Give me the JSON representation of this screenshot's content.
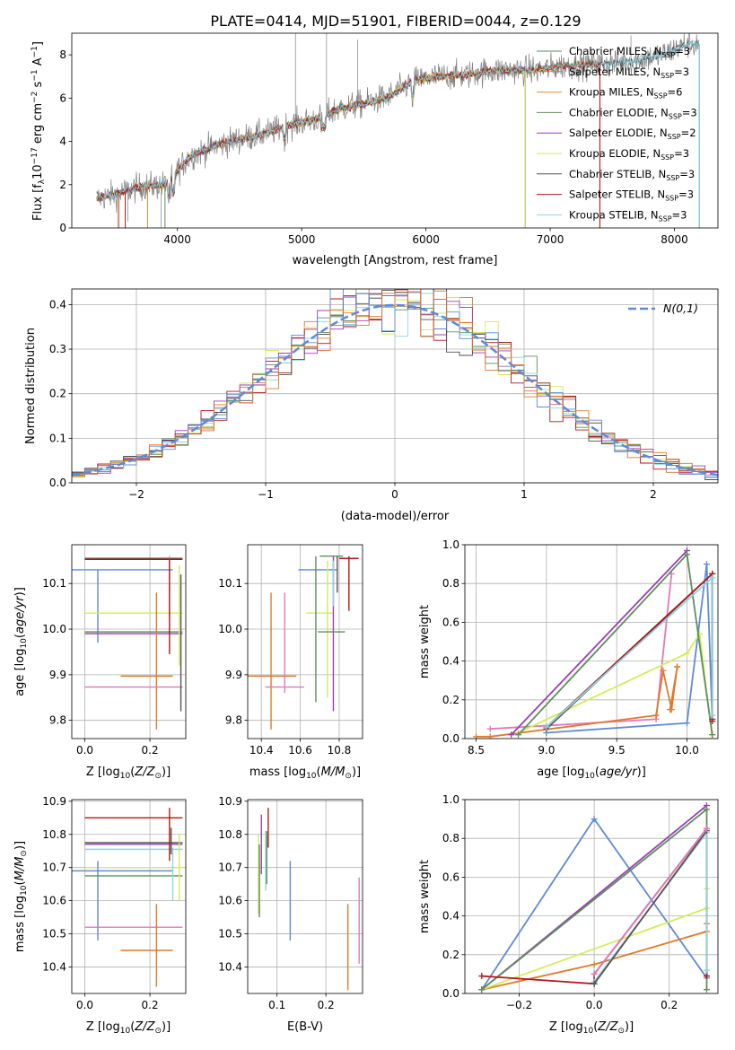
{
  "figure": {
    "title": "PLATE=0414, MJD=51901, FIBERID=0044, z=0.129"
  },
  "colors": {
    "chab_miles": "#5a8a5a",
    "salp_miles": "#e07040",
    "krou_miles": "#e08c30",
    "chab_elodie": "#5f8f5f",
    "salp_elodie": "#9b3fb5",
    "krou_elodie": "#d4e85a",
    "chab_stelib": "#505050",
    "salp_stelib": "#b01818",
    "krou_stelib": "#8ad4e0",
    "blue": "#5f8ad8",
    "pink": "#e07ab8",
    "orange": "#e07a2a",
    "yellow": "#d4ec5c",
    "purple": "#9b3fb5",
    "green": "#5f8f5f",
    "grey": "#555555",
    "red": "#b01818",
    "cyan": "#8ad4e0"
  },
  "chart_data": [
    {
      "id": "spectrum",
      "type": "line",
      "xlabel": "wavelength [Angstrom, rest frame]",
      "ylabel": "Flux [f",
      "xlim": [
        3150,
        8350
      ],
      "ylim": [
        0,
        9
      ],
      "xticks": [
        4000,
        5000,
        6000,
        7000,
        8000
      ],
      "yticks": [
        0,
        2,
        4,
        6,
        8
      ],
      "legend": "upper-right",
      "grid": false,
      "continuum": {
        "x": [
          3350,
          3500,
          3700,
          3900,
          4100,
          4300,
          4500,
          4700,
          4900,
          5100,
          5300,
          5500,
          5700,
          5900,
          6100,
          6300,
          6500,
          6700,
          6900,
          7100,
          7300,
          7500,
          7700,
          7900,
          8100
        ],
        "y": [
          1.35,
          1.55,
          1.9,
          2.0,
          3.3,
          3.8,
          4.1,
          4.35,
          4.75,
          5.0,
          5.5,
          5.75,
          6.05,
          6.8,
          7.0,
          7.05,
          7.25,
          7.3,
          7.3,
          7.5,
          7.55,
          7.6,
          7.75,
          8.0,
          8.5
        ]
      },
      "series": [
        {
          "name": "Chabrier MILES, N",
          "sub": "SSP",
          "suffix": "=3",
          "ckey": "chab_miles",
          "xmax": 7400
        },
        {
          "name": "Salpeter MILES, N",
          "sub": "SSP",
          "suffix": "=3",
          "ckey": "salp_miles",
          "xmax": 7400
        },
        {
          "name": "Kroupa MILES, N",
          "sub": "SSP",
          "suffix": "=6",
          "ckey": "krou_miles",
          "xmax": 7400
        },
        {
          "name": "Chabrier ELODIE, N",
          "sub": "SSP",
          "suffix": "=3",
          "ckey": "chab_elodie",
          "xmax": 6800
        },
        {
          "name": "Salpeter ELODIE, N",
          "sub": "SSP",
          "suffix": "=2",
          "ckey": "salp_elodie",
          "xmax": 6800
        },
        {
          "name": "Kroupa ELODIE, N",
          "sub": "SSP",
          "suffix": "=3",
          "ckey": "krou_elodie",
          "xmax": 6800
        },
        {
          "name": "Chabrier STELIB, N",
          "sub": "SSP",
          "suffix": "=3",
          "ckey": "chab_stelib",
          "xmax": 8200
        },
        {
          "name": "Salpeter STELIB, N",
          "sub": "SSP",
          "suffix": "=3",
          "ckey": "salp_stelib",
          "xmax": 7400
        },
        {
          "name": "Kroupa STELIB, N",
          "sub": "SSP",
          "suffix": "=3",
          "ckey": "krou_stelib",
          "xmax": 8200
        }
      ]
    },
    {
      "id": "residuals",
      "type": "histogram",
      "xlabel": "(data-model)/error",
      "ylabel": "Normed distribution",
      "xlim": [
        -2.5,
        2.5
      ],
      "ylim": [
        0,
        0.435
      ],
      "xticks": [
        -2,
        -1,
        0,
        1,
        2
      ],
      "yticks": [
        0.0,
        0.1,
        0.2,
        0.3,
        0.4
      ],
      "grid": true,
      "legend": "upper-right",
      "gaussian_label": "N(0,1)",
      "bin_edges_start": -2.5,
      "bin_width": 0.1
    },
    {
      "id": "age_vs_Z",
      "type": "errorbar",
      "xlabel": "Z [log10(Z/Z⊙)]",
      "ylabel": "age [log10(age/yr)]",
      "xlim": [
        -0.04,
        0.31
      ],
      "ylim": [
        9.76,
        10.185
      ],
      "xticks": [
        0.0,
        0.2
      ],
      "yticks": [
        9.8,
        9.9,
        10.0,
        10.1
      ],
      "grid": true,
      "points": [
        {
          "x": 0.15,
          "xerr": 0.15,
          "y": 10.155,
          "yerr": 0.0,
          "ckey": "green"
        },
        {
          "x": 0.15,
          "xerr": 0.15,
          "y": 10.155,
          "yerr": 0.0,
          "ckey": "grey"
        },
        {
          "x": 0.15,
          "xerr": 0.15,
          "y": 10.153,
          "yerr": 0.0,
          "ckey": "red"
        },
        {
          "x": 0.04,
          "xerr": 0.23,
          "y": 10.13,
          "yerr": 0.0,
          "ckey": "blue"
        },
        {
          "x": 0.04,
          "xerr": 0.0,
          "y": 10.05,
          "yerr": 0.08,
          "ckey": "blue"
        },
        {
          "x": 0.15,
          "xerr": 0.15,
          "y": 10.035,
          "yerr": 0.0,
          "ckey": "yellow"
        },
        {
          "x": 0.15,
          "xerr": 0.15,
          "y": 9.99,
          "yerr": 0.0,
          "ckey": "purple"
        },
        {
          "x": 0.15,
          "xerr": 0.15,
          "y": 9.994,
          "yerr": 0.0,
          "ckey": "green"
        },
        {
          "x": 0.19,
          "xerr": 0.08,
          "y": 9.897,
          "yerr": 0.0,
          "ckey": "orange"
        },
        {
          "x": 0.22,
          "xerr": 0.0,
          "y": 9.93,
          "yerr": 0.15,
          "ckey": "orange"
        },
        {
          "x": 0.15,
          "xerr": 0.15,
          "y": 9.873,
          "yerr": 0.0,
          "ckey": "pink"
        },
        {
          "x": 0.26,
          "xerr": 0.0,
          "y": 10.09,
          "yerr": 0.07,
          "ckey": "pink"
        },
        {
          "x": 0.26,
          "xerr": 0.0,
          "y": 10.05,
          "yerr": 0.105,
          "ckey": "red"
        },
        {
          "x": 0.29,
          "xerr": 0.0,
          "y": 10.03,
          "yerr": 0.11,
          "ckey": "yellow"
        },
        {
          "x": 0.295,
          "xerr": 0.0,
          "y": 9.97,
          "yerr": 0.15,
          "ckey": "grey"
        }
      ]
    },
    {
      "id": "age_vs_mass",
      "type": "errorbar",
      "xlabel": "mass [log10(M/M⊙)]",
      "ylabel": "",
      "xlim": [
        10.33,
        10.92
      ],
      "ylim": [
        9.76,
        10.185
      ],
      "xticks": [
        10.4,
        10.6,
        10.8
      ],
      "yticks": [
        9.8,
        9.9,
        10.0,
        10.1
      ],
      "grid": true,
      "points": [
        {
          "x": 10.45,
          "xerr": 0.13,
          "y": 9.897,
          "yerr": 0.0,
          "ckey": "orange"
        },
        {
          "x": 10.45,
          "xerr": 0.0,
          "y": 9.93,
          "yerr": 0.15,
          "ckey": "orange"
        },
        {
          "x": 10.52,
          "xerr": 0.1,
          "y": 9.873,
          "yerr": 0.0,
          "ckey": "pink"
        },
        {
          "x": 10.52,
          "xerr": 0.0,
          "y": 9.97,
          "yerr": 0.11,
          "ckey": "pink"
        },
        {
          "x": 10.69,
          "xerr": 0.1,
          "y": 10.13,
          "yerr": 0.0,
          "ckey": "blue"
        },
        {
          "x": 10.7,
          "xerr": 0.07,
          "y": 10.035,
          "yerr": 0.0,
          "ckey": "yellow"
        },
        {
          "x": 10.68,
          "xerr": 0.0,
          "y": 10.0,
          "yerr": 0.16,
          "ckey": "green"
        },
        {
          "x": 10.74,
          "xerr": 0.0,
          "y": 10.0,
          "yerr": 0.15,
          "ckey": "yellow"
        },
        {
          "x": 10.77,
          "xerr": 0.0,
          "y": 9.99,
          "yerr": 0.17,
          "ckey": "purple"
        },
        {
          "x": 10.76,
          "xerr": 0.06,
          "y": 10.16,
          "yerr": 0.0,
          "ckey": "green"
        },
        {
          "x": 10.76,
          "xerr": 0.07,
          "y": 9.994,
          "yerr": 0.0,
          "ckey": "green"
        },
        {
          "x": 10.77,
          "xerr": 0.0,
          "y": 10.1,
          "yerr": 0.05,
          "ckey": "cyan"
        },
        {
          "x": 10.79,
          "xerr": 0.0,
          "y": 10.12,
          "yerr": 0.04,
          "ckey": "grey"
        },
        {
          "x": 10.85,
          "xerr": 0.05,
          "y": 10.155,
          "yerr": 0.0,
          "ckey": "red"
        },
        {
          "x": 10.85,
          "xerr": 0.0,
          "y": 10.1,
          "yerr": 0.06,
          "ckey": "red"
        }
      ]
    },
    {
      "id": "mw_vs_age",
      "type": "line",
      "xlabel": "age [log10(age/yr)]",
      "ylabel": "mass weight",
      "xlim": [
        8.42,
        10.22
      ],
      "ylim": [
        0,
        1.0
      ],
      "xticks": [
        8.5,
        9.0,
        9.5,
        10.0
      ],
      "yticks": [
        0.0,
        0.2,
        0.4,
        0.6,
        0.8,
        1.0
      ],
      "grid": true,
      "series": [
        {
          "ckey": "blue",
          "x": [
            9.0,
            10.0,
            10.14,
            10.18
          ],
          "y": [
            0.03,
            0.08,
            0.9,
            0.1
          ]
        },
        {
          "ckey": "pink",
          "x": [
            8.6,
            9.78,
            9.89
          ],
          "y": [
            0.05,
            0.1,
            0.85
          ]
        },
        {
          "ckey": "orange",
          "x": [
            8.5,
            8.6,
            9.78,
            9.83,
            9.89,
            9.93,
            9.88,
            9.93
          ],
          "y": [
            0.01,
            0.01,
            0.12,
            0.35,
            0.15,
            0.37,
            0.15,
            0.37
          ]
        },
        {
          "ckey": "yellow",
          "x": [
            8.8,
            10.0,
            10.09,
            10.18
          ],
          "y": [
            0.03,
            0.44,
            0.54,
            0.0
          ]
        },
        {
          "ckey": "purple",
          "x": [
            8.75,
            10.0
          ],
          "y": [
            0.02,
            0.97
          ]
        },
        {
          "ckey": "green",
          "x": [
            8.8,
            10.0,
            10.18
          ],
          "y": [
            0.02,
            0.95,
            0.02
          ]
        },
        {
          "ckey": "grey",
          "x": [
            9.0,
            10.18,
            10.18
          ],
          "y": [
            0.05,
            0.85,
            0.1
          ]
        },
        {
          "ckey": "red",
          "x": [
            9.0,
            10.18,
            10.18
          ],
          "y": [
            0.06,
            0.85,
            0.09
          ]
        },
        {
          "ckey": "cyan",
          "x": [
            9.0,
            10.18,
            10.18
          ],
          "y": [
            0.06,
            0.83,
            0.12
          ]
        }
      ]
    },
    {
      "id": "mass_vs_Z",
      "type": "errorbar",
      "xlabel": "Z [log10(Z/Z⊙)]",
      "ylabel": "mass [log10(M/M⊙)]",
      "xlim": [
        -0.04,
        0.31
      ],
      "ylim": [
        10.32,
        10.905
      ],
      "xticks": [
        0.0,
        0.2
      ],
      "yticks": [
        10.4,
        10.5,
        10.6,
        10.7,
        10.8,
        10.9
      ],
      "grid": true,
      "points": [
        {
          "x": 0.15,
          "xerr": 0.15,
          "y": 10.85,
          "yerr": 0.0,
          "ckey": "red"
        },
        {
          "x": 0.15,
          "xerr": 0.15,
          "y": 10.775,
          "yerr": 0.0,
          "ckey": "grey"
        },
        {
          "x": 0.15,
          "xerr": 0.15,
          "y": 10.77,
          "yerr": 0.0,
          "ckey": "purple"
        },
        {
          "x": 0.15,
          "xerr": 0.15,
          "y": 10.755,
          "yerr": 0.0,
          "ckey": "cyan"
        },
        {
          "x": 0.15,
          "xerr": 0.15,
          "y": 10.7,
          "yerr": 0.0,
          "ckey": "yellow"
        },
        {
          "x": 0.04,
          "xerr": 0.23,
          "y": 10.69,
          "yerr": 0.0,
          "ckey": "blue"
        },
        {
          "x": 0.04,
          "xerr": 0.0,
          "y": 10.6,
          "yerr": 0.12,
          "ckey": "blue"
        },
        {
          "x": 0.15,
          "xerr": 0.15,
          "y": 10.675,
          "yerr": 0.0,
          "ckey": "green"
        },
        {
          "x": 0.15,
          "xerr": 0.15,
          "y": 10.52,
          "yerr": 0.0,
          "ckey": "pink"
        },
        {
          "x": 0.19,
          "xerr": 0.08,
          "y": 10.45,
          "yerr": 0.0,
          "ckey": "orange"
        },
        {
          "x": 0.22,
          "xerr": 0.0,
          "y": 10.465,
          "yerr": 0.125,
          "ckey": "orange"
        },
        {
          "x": 0.26,
          "xerr": 0.0,
          "y": 10.8,
          "yerr": 0.08,
          "ckey": "red"
        },
        {
          "x": 0.265,
          "xerr": 0.0,
          "y": 10.78,
          "yerr": 0.04,
          "ckey": "grey"
        },
        {
          "x": 0.27,
          "xerr": 0.0,
          "y": 10.68,
          "yerr": 0.08,
          "ckey": "cyan"
        },
        {
          "x": 0.29,
          "xerr": 0.0,
          "y": 10.7,
          "yerr": 0.1,
          "ckey": "yellow"
        }
      ]
    },
    {
      "id": "mass_vs_EBV",
      "type": "errorbar",
      "xlabel": "E(B-V)",
      "ylabel": "",
      "xlim": [
        0.04,
        0.275
      ],
      "ylim": [
        10.32,
        10.905
      ],
      "xticks": [
        0.1,
        0.2
      ],
      "yticks": [
        10.4,
        10.5,
        10.6,
        10.7,
        10.8,
        10.9
      ],
      "grid": true,
      "points": [
        {
          "x": 0.062,
          "xerr": 0.0,
          "y": 10.68,
          "yerr": 0.12,
          "ckey": "yellow"
        },
        {
          "x": 0.064,
          "xerr": 0.0,
          "y": 10.66,
          "yerr": 0.11,
          "ckey": "green"
        },
        {
          "x": 0.068,
          "xerr": 0.0,
          "y": 10.77,
          "yerr": 0.09,
          "ckey": "purple"
        },
        {
          "x": 0.077,
          "xerr": 0.0,
          "y": 10.72,
          "yerr": 0.09,
          "ckey": "cyan"
        },
        {
          "x": 0.079,
          "xerr": 0.0,
          "y": 10.73,
          "yerr": 0.08,
          "ckey": "green"
        },
        {
          "x": 0.082,
          "xerr": 0.0,
          "y": 10.82,
          "yerr": 0.06,
          "ckey": "red"
        },
        {
          "x": 0.127,
          "xerr": 0.0,
          "y": 10.6,
          "yerr": 0.12,
          "ckey": "blue"
        },
        {
          "x": 0.245,
          "xerr": 0.0,
          "y": 10.46,
          "yerr": 0.13,
          "ckey": "orange"
        },
        {
          "x": 0.268,
          "xerr": 0.0,
          "y": 10.54,
          "yerr": 0.13,
          "ckey": "pink"
        }
      ]
    },
    {
      "id": "mw_vs_Z",
      "type": "line",
      "xlabel": "Z [log10(Z/Z⊙)]",
      "ylabel": "mass weight",
      "xlim": [
        -0.345,
        0.33
      ],
      "ylim": [
        0,
        1.0
      ],
      "xticks": [
        -0.2,
        0.0,
        0.2
      ],
      "yticks": [
        0.0,
        0.2,
        0.4,
        0.6,
        0.8,
        1.0
      ],
      "grid": true,
      "series": [
        {
          "ckey": "blue",
          "x": [
            -0.3,
            0.0,
            0.3
          ],
          "y": [
            0.02,
            0.9,
            0.08
          ]
        },
        {
          "ckey": "orange",
          "x": [
            -0.3,
            0.0,
            0.3,
            0.3
          ],
          "y": [
            0.02,
            0.15,
            0.32,
            0.36
          ]
        },
        {
          "ckey": "yellow",
          "x": [
            -0.3,
            0.3,
            0.3
          ],
          "y": [
            0.02,
            0.44,
            0.54
          ]
        },
        {
          "ckey": "purple",
          "x": [
            -0.3,
            0.3
          ],
          "y": [
            0.02,
            0.97
          ]
        },
        {
          "ckey": "green",
          "x": [
            -0.3,
            0.3,
            0.3
          ],
          "y": [
            0.02,
            0.95,
            0.02
          ]
        },
        {
          "ckey": "red",
          "x": [
            -0.3,
            0.0,
            0.0,
            0.3,
            0.3
          ],
          "y": [
            0.09,
            0.05,
            0.1,
            0.85,
            0.09
          ]
        },
        {
          "ckey": "cyan",
          "x": [
            0.0,
            0.3,
            0.3
          ],
          "y": [
            0.06,
            0.83,
            0.12
          ]
        },
        {
          "ckey": "grey",
          "x": [
            0.0,
            0.3
          ],
          "y": [
            0.05,
            0.84
          ]
        },
        {
          "ckey": "pink",
          "x": [
            0.0,
            0.3
          ],
          "y": [
            0.1,
            0.85
          ]
        }
      ]
    }
  ]
}
